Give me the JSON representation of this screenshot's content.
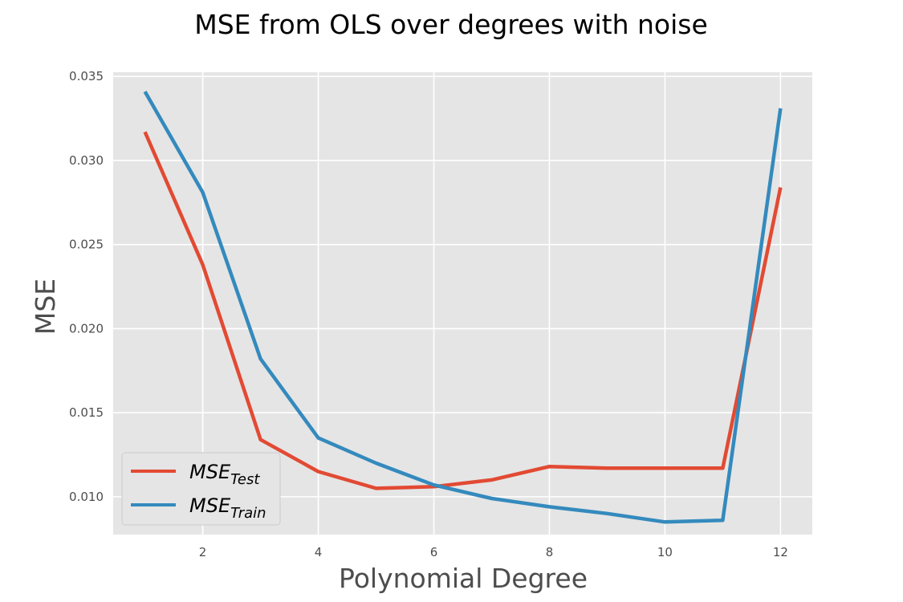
{
  "chart_data": {
    "type": "line",
    "title": "MSE from OLS over degrees with noise",
    "xlabel": "Polynomial Degree",
    "ylabel": "MSE",
    "xlim": [
      0.45,
      12.55
    ],
    "ylim": [
      0.00775,
      0.03525
    ],
    "xticks": [
      2,
      4,
      6,
      8,
      10,
      12
    ],
    "yticks": [
      0.01,
      0.015,
      0.02,
      0.025,
      0.03,
      0.035
    ],
    "ytick_labels": [
      "0.010",
      "0.015",
      "0.020",
      "0.025",
      "0.030",
      "0.035"
    ],
    "grid": true,
    "legend_position": "lower-left",
    "x": [
      1,
      2,
      3,
      4,
      5,
      6,
      7,
      8,
      9,
      10,
      11,
      12
    ],
    "series": [
      {
        "name": "MSE_Test",
        "legend_base": "MSE",
        "legend_sub": "Test",
        "color": "#e24a33",
        "values": [
          0.0317,
          0.0238,
          0.0134,
          0.0115,
          0.0105,
          0.0106,
          0.011,
          0.0118,
          0.0117,
          0.0117,
          0.0117,
          0.0284
        ]
      },
      {
        "name": "MSE_Train",
        "legend_base": "MSE",
        "legend_sub": "Train",
        "color": "#348abd",
        "values": [
          0.0341,
          0.0281,
          0.0182,
          0.0135,
          0.012,
          0.0107,
          0.0099,
          0.0094,
          0.009,
          0.0085,
          0.0086,
          0.0331
        ]
      }
    ]
  }
}
